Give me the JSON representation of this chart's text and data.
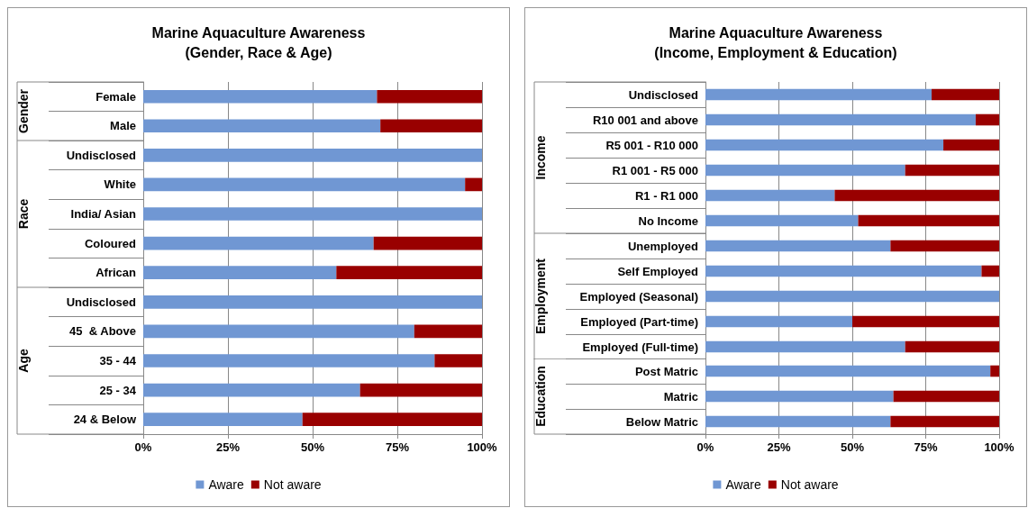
{
  "chart_data": [
    {
      "type": "bar",
      "orientation": "horizontal",
      "stacked": true,
      "title": "Marine Aquaculture Awareness",
      "subtitle": "(Gender, Race & Age)",
      "ylabel": "Gender",
      "categories": [
        "Female",
        "Male"
      ],
      "series": [
        {
          "color": "#7097d3",
          "values": [
            69,
            70
          ]
        },
        {
          "color": "#990000",
          "values": [
            31,
            30
          ]
        }
      ],
      "xlim": [
        0,
        100
      ],
      "xticks": [
        0,
        25,
        50,
        75,
        100
      ],
      "grid": "x",
      "tick_labels": "y"
    },
    {
      "type": "bar",
      "orientation": "horizontal",
      "stacked": true,
      "ylabel": "Race",
      "categories": [
        "Undisclosed",
        "White",
        "India/ Asian",
        "Coloured",
        "African"
      ],
      "series": [
        {
          "color": "#7097d3",
          "values": [
            100,
            95,
            100,
            68,
            57
          ]
        },
        {
          "color": "#990000",
          "values": [
            0,
            5,
            0,
            32,
            43
          ]
        }
      ],
      "xlim": [
        0,
        100
      ],
      "xticks": [
        0,
        25,
        50,
        75,
        100
      ],
      "grid": "x",
      "tick_labels": "y"
    },
    {
      "type": "bar",
      "orientation": "horizontal",
      "stacked": true,
      "ylabel": "Age",
      "categories": [
        "Undisclosed",
        "45  & Above",
        "35 - 44",
        "25 - 34",
        "24 & Below"
      ],
      "series": [
        {
          "name": "Aware",
          "color": "#7097d3",
          "values": [
            100,
            80,
            86,
            64,
            47
          ]
        },
        {
          "name": "Not aware",
          "color": "#990000",
          "values": [
            0,
            20,
            14,
            36,
            53
          ]
        }
      ],
      "xlim": [
        0,
        100
      ],
      "xticks": [
        {
          "value": 0,
          "label": "0%"
        },
        {
          "value": 25,
          "label": "25%"
        },
        {
          "value": 50,
          "label": "50%"
        },
        {
          "value": 75,
          "label": "75%"
        },
        {
          "value": 100,
          "label": "100%"
        }
      ],
      "grid": "x",
      "legend": "bottom"
    },
    {
      "type": "bar",
      "orientation": "horizontal",
      "stacked": true,
      "title": "Marine Aquaculture Awareness",
      "subtitle": "(Income, Employment & Education)",
      "ylabel": "Income",
      "categories": [
        "Undisclosed",
        "R10 001 and above",
        "R5 001 - R10 000",
        "R1 001 - R5 000",
        "R1 - R1 000",
        "No Income"
      ],
      "series": [
        {
          "color": "#7097d3",
          "values": [
            77,
            92,
            81,
            68,
            44,
            52
          ]
        },
        {
          "color": "#990000",
          "values": [
            23,
            8,
            19,
            32,
            56,
            48
          ]
        }
      ],
      "xlim": [
        0,
        100
      ],
      "xticks": [
        0,
        25,
        50,
        75,
        100
      ],
      "grid": "x",
      "tick_labels": "y"
    },
    {
      "type": "bar",
      "orientation": "horizontal",
      "stacked": true,
      "ylabel": "Employment",
      "categories": [
        "Unemployed",
        "Self Employed",
        "Employed (Seasonal)",
        "Employed (Part-time)",
        "Employed (Full-time)"
      ],
      "series": [
        {
          "color": "#7097d3",
          "values": [
            63,
            94,
            100,
            50,
            68
          ]
        },
        {
          "color": "#990000",
          "values": [
            37,
            6,
            0,
            50,
            32
          ]
        }
      ],
      "xlim": [
        0,
        100
      ],
      "xticks": [
        0,
        25,
        50,
        75,
        100
      ],
      "grid": "x",
      "tick_labels": "y"
    },
    {
      "type": "bar",
      "orientation": "horizontal",
      "stacked": true,
      "ylabel": "Education",
      "categories": [
        "Post Matric",
        "Matric",
        "Below Matric"
      ],
      "series": [
        {
          "name": "Aware",
          "color": "#7097d3",
          "values": [
            97,
            64,
            63
          ]
        },
        {
          "name": "Not aware",
          "color": "#990000",
          "values": [
            3,
            36,
            37
          ]
        }
      ],
      "xlim": [
        0,
        100
      ],
      "xticks": [
        {
          "value": 0,
          "label": "0%"
        },
        {
          "value": 25,
          "label": "25%"
        },
        {
          "value": 50,
          "label": "50%"
        },
        {
          "value": 75,
          "label": "75%"
        },
        {
          "value": 100,
          "label": "100%"
        }
      ],
      "grid": "x",
      "legend": "bottom"
    }
  ]
}
